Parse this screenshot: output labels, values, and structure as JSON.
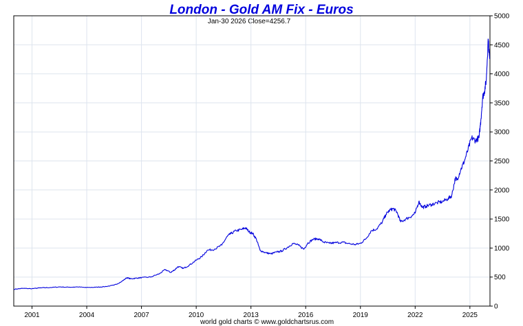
{
  "chart_data": {
    "type": "line",
    "title": "London - Gold AM Fix - Euros",
    "subtitle": "Jan-30  2026   Close=4256.7",
    "footer": "world gold charts © www.goldchartsrus.com",
    "colors": {
      "title": "#0000dd",
      "line": "#0000dd",
      "grid": "#dde4ee"
    },
    "xlim": [
      2000.0,
      2026.1
    ],
    "ylim": [
      0,
      5000
    ],
    "x_ticks": [
      {
        "value": 2001,
        "label": "2001"
      },
      {
        "value": 2004,
        "label": "2004"
      },
      {
        "value": 2007,
        "label": "2007"
      },
      {
        "value": 2010,
        "label": "2010"
      },
      {
        "value": 2013,
        "label": "2013"
      },
      {
        "value": 2016,
        "label": "2016"
      },
      {
        "value": 2019,
        "label": "2019"
      },
      {
        "value": 2022,
        "label": "2022"
      },
      {
        "value": 2025,
        "label": "2025"
      }
    ],
    "y_ticks": [
      {
        "value": 0,
        "label": "0"
      },
      {
        "value": 500,
        "label": "500"
      },
      {
        "value": 1000,
        "label": "1000"
      },
      {
        "value": 1500,
        "label": "1500"
      },
      {
        "value": 2000,
        "label": "2000"
      },
      {
        "value": 2500,
        "label": "2500"
      },
      {
        "value": 3000,
        "label": "3000"
      },
      {
        "value": 3500,
        "label": "3500"
      },
      {
        "value": 4000,
        "label": "4000"
      },
      {
        "value": 4500,
        "label": "4500"
      },
      {
        "value": 5000,
        "label": "5000"
      }
    ],
    "series": [
      {
        "name": "Gold AM Fix (EUR)",
        "x": [
          2000.0,
          2000.5,
          2001.0,
          2001.5,
          2002.0,
          2002.5,
          2003.0,
          2003.5,
          2004.0,
          2004.5,
          2005.0,
          2005.5,
          2005.9,
          2006.2,
          2006.4,
          2006.7,
          2007.0,
          2007.5,
          2008.0,
          2008.3,
          2008.6,
          2008.8,
          2009.0,
          2009.3,
          2009.6,
          2010.0,
          2010.3,
          2010.6,
          2011.0,
          2011.4,
          2011.7,
          2011.9,
          2012.2,
          2012.5,
          2012.7,
          2012.9,
          2013.1,
          2013.3,
          2013.5,
          2013.8,
          2014.1,
          2014.4,
          2014.7,
          2015.0,
          2015.3,
          2015.6,
          2015.9,
          2016.1,
          2016.4,
          2016.7,
          2017.0,
          2017.3,
          2017.6,
          2018.0,
          2018.3,
          2018.7,
          2019.0,
          2019.3,
          2019.6,
          2019.9,
          2020.2,
          2020.4,
          2020.6,
          2020.8,
          2021.0,
          2021.2,
          2021.5,
          2021.8,
          2022.0,
          2022.2,
          2022.4,
          2022.6,
          2022.9,
          2023.2,
          2023.5,
          2023.8,
          2024.0,
          2024.2,
          2024.3,
          2024.5,
          2024.7,
          2024.9,
          2025.1,
          2025.3,
          2025.5,
          2025.6,
          2025.7,
          2025.8,
          2025.9,
          2026.0,
          2026.08
        ],
        "y": [
          290,
          305,
          300,
          315,
          320,
          330,
          325,
          330,
          320,
          325,
          335,
          360,
          420,
          490,
          470,
          480,
          490,
          500,
          560,
          630,
          580,
          620,
          680,
          650,
          700,
          790,
          850,
          960,
          980,
          1050,
          1200,
          1250,
          1300,
          1320,
          1350,
          1280,
          1250,
          1150,
          960,
          920,
          900,
          930,
          950,
          1010,
          1080,
          1050,
          980,
          1080,
          1150,
          1160,
          1100,
          1080,
          1090,
          1100,
          1080,
          1060,
          1080,
          1160,
          1300,
          1330,
          1450,
          1580,
          1650,
          1680,
          1620,
          1450,
          1500,
          1550,
          1600,
          1800,
          1700,
          1720,
          1750,
          1780,
          1800,
          1850,
          1900,
          2200,
          2180,
          2350,
          2500,
          2700,
          2900,
          2850,
          2900,
          3200,
          3600,
          3700,
          3900,
          4600,
          4256.7
        ]
      }
    ]
  }
}
